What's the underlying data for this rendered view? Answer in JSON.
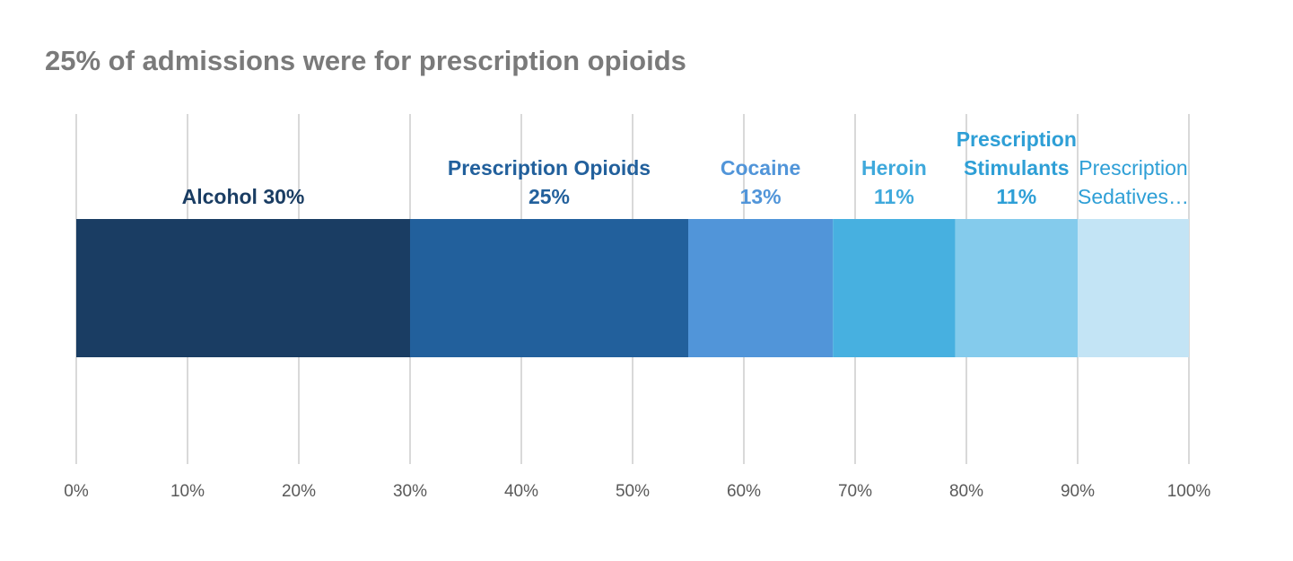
{
  "title": "25% of admissions were for prescription opioids",
  "chart_data": {
    "type": "bar",
    "orientation": "horizontal-stacked-100",
    "title": "25% of admissions were for prescription opioids",
    "xlim": [
      0,
      100
    ],
    "x_ticks": [
      "0%",
      "10%",
      "20%",
      "30%",
      "40%",
      "50%",
      "60%",
      "70%",
      "80%",
      "90%",
      "100%"
    ],
    "grid": true,
    "legend": "none",
    "segments": [
      {
        "name": "Alcohol",
        "value": 30,
        "color": "#1a3d63",
        "label_color": "#1a3d63",
        "label_bold": true,
        "label_lines": [
          "Alcohol 30%"
        ]
      },
      {
        "name": "Prescription Opioids",
        "value": 25,
        "color": "#22609c",
        "label_color": "#22609c",
        "label_bold": true,
        "label_lines": [
          "Prescription Opioids",
          "25%"
        ]
      },
      {
        "name": "Cocaine",
        "value": 13,
        "color": "#5195d9",
        "label_color": "#5195d9",
        "label_bold": true,
        "label_lines": [
          "Cocaine",
          "13%"
        ]
      },
      {
        "name": "Heroin",
        "value": 11,
        "color": "#47b0e0",
        "label_color": "#3fa9dc",
        "label_bold": true,
        "label_lines": [
          "Heroin",
          "11%"
        ]
      },
      {
        "name": "Prescription Stimulants",
        "value": 11,
        "color": "#84cbec",
        "label_color": "#2e9fd6",
        "label_bold": true,
        "label_lines": [
          "Prescription",
          "Stimulants",
          "11%"
        ]
      },
      {
        "name": "Prescription Sedatives",
        "value": 10,
        "color": "#c3e4f5",
        "label_color": "#2e9fd6",
        "label_bold": false,
        "label_lines": [
          "Prescription",
          "Sedatives…"
        ]
      }
    ]
  }
}
